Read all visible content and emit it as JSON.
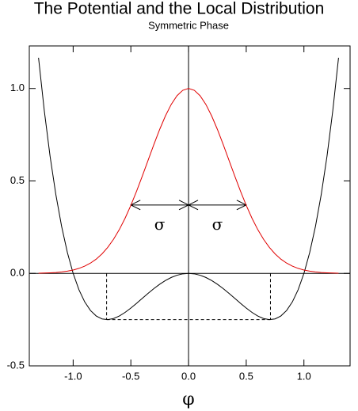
{
  "chart_data": {
    "type": "line",
    "title": "The Potential and the Local Distribution",
    "subtitle": "Symmetric Phase",
    "x_label": "φ",
    "xlim": [
      -1.38,
      1.4
    ],
    "ylim": [
      -0.5,
      1.23
    ],
    "xticks": [
      {
        "value": -1.0,
        "label": "-1.0"
      },
      -0.5,
      {
        "value": 0.0,
        "label": "0.0"
      },
      0.5,
      {
        "value": 1.0,
        "label": "1.0"
      }
    ],
    "yticks": [
      -0.5,
      {
        "value": 0.0,
        "label": "0.0"
      },
      0.5,
      {
        "value": 1.0,
        "label": "1.0"
      }
    ],
    "x": [
      -1.3,
      -1.25,
      -1.2,
      -1.15,
      -1.1,
      -1.05,
      -1.0,
      -0.95,
      -0.9,
      -0.85,
      -0.8,
      -0.75,
      -0.7,
      -0.65,
      -0.6,
      -0.55,
      -0.5,
      -0.45,
      -0.4,
      -0.35,
      -0.3,
      -0.25,
      -0.2,
      -0.15,
      -0.1,
      -0.05,
      0,
      0.05,
      0.1,
      0.15,
      0.2,
      0.25,
      0.3,
      0.35,
      0.4,
      0.45,
      0.5,
      0.55,
      0.6,
      0.65,
      0.7,
      0.75,
      0.8,
      0.85,
      0.9,
      0.95,
      1.0,
      1.05,
      1.1,
      1.15,
      1.2,
      1.25,
      1.3
    ],
    "series": [
      {
        "color": "#000000",
        "values": [
          1.1661,
          0.8789,
          0.6336,
          0.4265,
          0.2541,
          0.113,
          0,
          -0.088,
          -0.1539,
          -0.2005,
          -0.2304,
          -0.2461,
          -0.2499,
          -0.244,
          -0.2304,
          -0.211,
          -0.1875,
          -0.1615,
          -0.1344,
          -0.1075,
          -0.0819,
          -0.0586,
          -0.0384,
          -0.022,
          -0.0099,
          -0.0025,
          0,
          -0.0025,
          -0.0099,
          -0.022,
          -0.0384,
          -0.0586,
          -0.0819,
          -0.1075,
          -0.1344,
          -0.1615,
          -0.1875,
          -0.211,
          -0.2304,
          -0.244,
          -0.2499,
          -0.2461,
          -0.2304,
          -0.2005,
          -0.1539,
          -0.088,
          0,
          0.113,
          0.2541,
          0.4265,
          0.6336,
          0.8789,
          1.1661
        ]
      },
      {
        "color": "#e00000",
        "values": [
          0.0012,
          0.0019,
          0.0032,
          0.005,
          0.0079,
          0.0122,
          0.0183,
          0.0271,
          0.0392,
          0.0556,
          0.0773,
          0.1054,
          0.1409,
          0.1845,
          0.2369,
          0.2982,
          0.3679,
          0.4449,
          0.5273,
          0.6126,
          0.6977,
          0.7788,
          0.8521,
          0.9139,
          0.9608,
          0.99,
          1,
          0.99,
          0.9608,
          0.9139,
          0.8521,
          0.7788,
          0.6977,
          0.6126,
          0.5273,
          0.4449,
          0.3679,
          0.2982,
          0.2369,
          0.1845,
          0.1409,
          0.1054,
          0.0773,
          0.0556,
          0.0392,
          0.0271,
          0.0183,
          0.0122,
          0.0079,
          0.005,
          0.0032,
          0.0019,
          0.0012
        ]
      }
    ],
    "dashed_lines": [
      {
        "x": [
          -0.71,
          -0.71
        ],
        "y": [
          0,
          -0.25
        ]
      },
      {
        "x": [
          0.71,
          0.71
        ],
        "y": [
          0,
          -0.25
        ]
      },
      {
        "x": [
          -0.71,
          0.71
        ],
        "y": [
          -0.25,
          -0.25
        ]
      }
    ],
    "arrows": [
      {
        "x": [
          0,
          -0.5
        ],
        "y": 0.37
      },
      {
        "x": [
          0,
          0.5
        ],
        "y": 0.37
      }
    ],
    "annotations": [
      {
        "text": "σ",
        "x": -0.25,
        "y": 0.26
      },
      {
        "text": "σ",
        "x": 0.25,
        "y": 0.26
      }
    ]
  }
}
